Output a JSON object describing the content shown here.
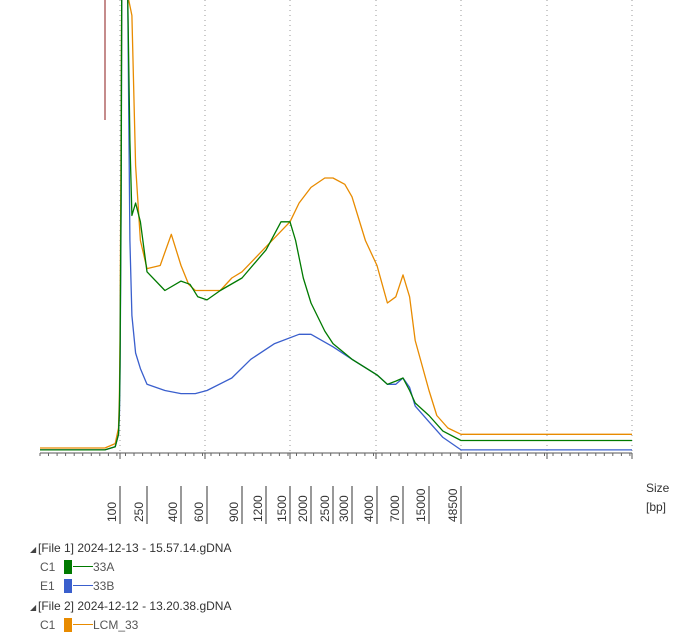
{
  "axis_unit": [
    "Size",
    "[bp]"
  ],
  "chart_data": {
    "type": "line",
    "xlabel": "Size [bp]",
    "x_ticks": [
      100,
      250,
      400,
      600,
      900,
      1200,
      1500,
      2000,
      2500,
      3000,
      4000,
      7000,
      15000,
      48500
    ],
    "grid": "vertical dotted",
    "series": [
      {
        "name": "33A",
        "color": "#007a00",
        "points": [
          [
            60,
            0.5
          ],
          [
            85,
            1
          ],
          [
            95,
            3
          ],
          [
            98,
            7
          ],
          [
            100,
            14
          ],
          [
            104,
            45
          ],
          [
            106,
            120
          ],
          [
            109,
            600
          ],
          [
            118,
            600
          ],
          [
            130,
            105
          ],
          [
            140,
            50
          ],
          [
            150,
            38
          ],
          [
            170,
            40
          ],
          [
            200,
            37
          ],
          [
            250,
            29
          ],
          [
            320,
            26
          ],
          [
            400,
            27.5
          ],
          [
            460,
            27
          ],
          [
            520,
            25
          ],
          [
            600,
            24.5
          ],
          [
            700,
            26
          ],
          [
            900,
            28
          ],
          [
            1200,
            32.5
          ],
          [
            1380,
            37
          ],
          [
            1500,
            37
          ],
          [
            1620,
            34
          ],
          [
            1800,
            28
          ],
          [
            2000,
            24
          ],
          [
            2300,
            19.5
          ],
          [
            2500,
            17.5
          ],
          [
            3000,
            15
          ],
          [
            4000,
            12.5
          ],
          [
            5000,
            11
          ],
          [
            6000,
            11.5
          ],
          [
            7000,
            12
          ],
          [
            8500,
            10
          ],
          [
            10000,
            8
          ],
          [
            15000,
            6
          ],
          [
            25000,
            3.5
          ],
          [
            48500,
            2
          ]
        ]
      },
      {
        "name": "33B",
        "color": "#3a5fcd",
        "points": [
          [
            60,
            0.5
          ],
          [
            85,
            1
          ],
          [
            95,
            3
          ],
          [
            98,
            6
          ],
          [
            100,
            12
          ],
          [
            104,
            40
          ],
          [
            106,
            110
          ],
          [
            109,
            600
          ],
          [
            118,
            600
          ],
          [
            130,
            90
          ],
          [
            140,
            34
          ],
          [
            150,
            22
          ],
          [
            170,
            16
          ],
          [
            200,
            13.5
          ],
          [
            250,
            11
          ],
          [
            320,
            10
          ],
          [
            400,
            9.5
          ],
          [
            500,
            9.5
          ],
          [
            600,
            10
          ],
          [
            800,
            12
          ],
          [
            1000,
            15
          ],
          [
            1300,
            17.5
          ],
          [
            1700,
            19
          ],
          [
            2000,
            19
          ],
          [
            2500,
            17
          ],
          [
            3000,
            15
          ],
          [
            4000,
            12.5
          ],
          [
            5000,
            11
          ],
          [
            6000,
            11
          ],
          [
            7000,
            12
          ],
          [
            8500,
            10.5
          ],
          [
            10000,
            7.5
          ],
          [
            15000,
            5
          ],
          [
            25000,
            2.5
          ],
          [
            48500,
            0.5
          ]
        ]
      },
      {
        "name": "LCM_33",
        "color": "#e88b00",
        "points": [
          [
            60,
            0.8
          ],
          [
            85,
            1.5
          ],
          [
            95,
            4
          ],
          [
            98,
            9
          ],
          [
            100,
            18
          ],
          [
            104,
            55
          ],
          [
            106,
            150
          ],
          [
            109,
            600
          ],
          [
            118,
            600
          ],
          [
            130,
            130
          ],
          [
            150,
            70
          ],
          [
            170,
            46
          ],
          [
            200,
            34
          ],
          [
            250,
            29.5
          ],
          [
            300,
            30
          ],
          [
            350,
            35
          ],
          [
            400,
            30
          ],
          [
            450,
            27
          ],
          [
            500,
            26
          ],
          [
            600,
            26
          ],
          [
            700,
            26
          ],
          [
            800,
            28
          ],
          [
            900,
            29
          ],
          [
            1200,
            33
          ],
          [
            1500,
            37
          ],
          [
            1700,
            40
          ],
          [
            2000,
            42.5
          ],
          [
            2300,
            44
          ],
          [
            2500,
            44
          ],
          [
            2800,
            43
          ],
          [
            3000,
            41
          ],
          [
            3500,
            34
          ],
          [
            4000,
            30
          ],
          [
            5000,
            24
          ],
          [
            6000,
            25
          ],
          [
            7000,
            28.5
          ],
          [
            8500,
            25
          ],
          [
            10000,
            18
          ],
          [
            15000,
            10
          ],
          [
            20000,
            6
          ],
          [
            30000,
            4
          ],
          [
            48500,
            3
          ]
        ]
      }
    ]
  },
  "legend": [
    {
      "file": "[File 1] 2024-12-13 - 15.57.14.gDNA",
      "channels": [
        {
          "well": "C1",
          "name": "33A",
          "color": "#007a00"
        },
        {
          "well": "E1",
          "name": "33B",
          "color": "#3a5fcd"
        }
      ]
    },
    {
      "file": "[File 2] 2024-12-12 - 13.20.38.gDNA",
      "channels": [
        {
          "well": "C1",
          "name": "LCM_33",
          "color": "#e88b00"
        }
      ]
    }
  ]
}
